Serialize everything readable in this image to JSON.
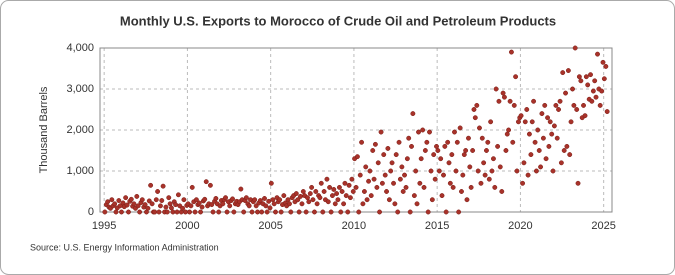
{
  "chart_data": {
    "type": "scatter",
    "title": "Monthly U.S. Exports to Morocco of Crude Oil and Petroleum Products",
    "y_label": "Thousand Barrels",
    "source": "Source: U.S. Energy Information Administration",
    "color": "#a8322a",
    "grid": true,
    "xlim": [
      1994.75,
      2025.5
    ],
    "xticks": [
      1995,
      2000,
      2005,
      2010,
      2015,
      2020,
      2025
    ],
    "ylim": [
      0,
      4000
    ],
    "yticks": [
      0,
      {
        "value": 1000,
        "label": "1,000"
      },
      {
        "value": 2000,
        "label": "2,000"
      },
      {
        "value": 3000,
        "label": "3,000"
      },
      {
        "value": 4000,
        "label": "4,000"
      }
    ],
    "x": [
      1995.04,
      1995.13,
      1995.21,
      1995.29,
      1995.38,
      1995.46,
      1995.54,
      1995.63,
      1995.71,
      1995.79,
      1995.88,
      1995.96,
      1996.04,
      1996.13,
      1996.21,
      1996.29,
      1996.38,
      1996.46,
      1996.54,
      1996.63,
      1996.71,
      1996.79,
      1996.88,
      1996.96,
      1997.04,
      1997.13,
      1997.21,
      1997.29,
      1997.38,
      1997.46,
      1997.54,
      1997.63,
      1997.71,
      1997.79,
      1997.88,
      1997.96,
      1998.04,
      1998.13,
      1998.21,
      1998.29,
      1998.38,
      1998.46,
      1998.54,
      1998.63,
      1998.71,
      1998.79,
      1998.88,
      1998.96,
      1999.04,
      1999.13,
      1999.21,
      1999.29,
      1999.38,
      1999.46,
      1999.54,
      1999.63,
      1999.71,
      1999.79,
      1999.88,
      1999.96,
      2000.04,
      2000.13,
      2000.21,
      2000.29,
      2000.38,
      2000.46,
      2000.54,
      2000.63,
      2000.71,
      2000.79,
      2000.88,
      2000.96,
      2001.04,
      2001.13,
      2001.21,
      2001.29,
      2001.38,
      2001.46,
      2001.54,
      2001.63,
      2001.71,
      2001.79,
      2001.88,
      2001.96,
      2002.04,
      2002.13,
      2002.21,
      2002.29,
      2002.38,
      2002.46,
      2002.54,
      2002.63,
      2002.71,
      2002.79,
      2002.88,
      2002.96,
      2003.04,
      2003.13,
      2003.21,
      2003.29,
      2003.38,
      2003.46,
      2003.54,
      2003.63,
      2003.71,
      2003.79,
      2003.88,
      2003.96,
      2004.04,
      2004.13,
      2004.21,
      2004.29,
      2004.38,
      2004.46,
      2004.54,
      2004.63,
      2004.71,
      2004.79,
      2004.88,
      2004.96,
      2005.04,
      2005.13,
      2005.21,
      2005.29,
      2005.38,
      2005.46,
      2005.54,
      2005.63,
      2005.71,
      2005.79,
      2005.88,
      2005.96,
      2006.04,
      2006.13,
      2006.21,
      2006.29,
      2006.38,
      2006.46,
      2006.54,
      2006.63,
      2006.71,
      2006.79,
      2006.88,
      2006.96,
      2007.04,
      2007.13,
      2007.21,
      2007.29,
      2007.38,
      2007.46,
      2007.54,
      2007.63,
      2007.71,
      2007.79,
      2007.88,
      2007.96,
      2008.04,
      2008.13,
      2008.21,
      2008.29,
      2008.38,
      2008.46,
      2008.54,
      2008.63,
      2008.71,
      2008.79,
      2008.88,
      2008.96,
      2009.04,
      2009.13,
      2009.21,
      2009.29,
      2009.38,
      2009.46,
      2009.54,
      2009.63,
      2009.71,
      2009.79,
      2009.88,
      2009.96,
      2010.04,
      2010.13,
      2010.21,
      2010.29,
      2010.38,
      2010.46,
      2010.54,
      2010.63,
      2010.71,
      2010.79,
      2010.88,
      2010.96,
      2011.04,
      2011.13,
      2011.21,
      2011.29,
      2011.38,
      2011.46,
      2011.54,
      2011.63,
      2011.71,
      2011.79,
      2011.88,
      2011.96,
      2012.04,
      2012.13,
      2012.21,
      2012.29,
      2012.38,
      2012.46,
      2012.54,
      2012.63,
      2012.71,
      2012.79,
      2012.88,
      2012.96,
      2013.04,
      2013.13,
      2013.21,
      2013.29,
      2013.38,
      2013.46,
      2013.54,
      2013.63,
      2013.71,
      2013.79,
      2013.88,
      2013.96,
      2014.04,
      2014.13,
      2014.21,
      2014.29,
      2014.38,
      2014.46,
      2014.54,
      2014.63,
      2014.71,
      2014.79,
      2014.88,
      2014.96,
      2015.04,
      2015.13,
      2015.21,
      2015.29,
      2015.38,
      2015.46,
      2015.54,
      2015.63,
      2015.71,
      2015.79,
      2015.88,
      2015.96,
      2016.04,
      2016.13,
      2016.21,
      2016.29,
      2016.38,
      2016.46,
      2016.54,
      2016.63,
      2016.71,
      2016.79,
      2016.88,
      2016.96,
      2017.04,
      2017.13,
      2017.21,
      2017.29,
      2017.38,
      2017.46,
      2017.54,
      2017.63,
      2017.71,
      2017.79,
      2017.88,
      2017.96,
      2018.04,
      2018.13,
      2018.21,
      2018.29,
      2018.38,
      2018.46,
      2018.54,
      2018.63,
      2018.71,
      2018.79,
      2018.88,
      2018.96,
      2019.04,
      2019.13,
      2019.21,
      2019.29,
      2019.38,
      2019.46,
      2019.54,
      2019.63,
      2019.71,
      2019.79,
      2019.88,
      2019.96,
      2020.04,
      2020.13,
      2020.21,
      2020.29,
      2020.38,
      2020.46,
      2020.54,
      2020.63,
      2020.71,
      2020.79,
      2020.88,
      2020.96,
      2021.04,
      2021.13,
      2021.21,
      2021.29,
      2021.38,
      2021.46,
      2021.54,
      2021.63,
      2021.71,
      2021.79,
      2021.88,
      2021.96,
      2022.04,
      2022.13,
      2022.21,
      2022.29,
      2022.38,
      2022.46,
      2022.54,
      2022.63,
      2022.71,
      2022.79,
      2022.88,
      2022.96,
      2023.04,
      2023.13,
      2023.21,
      2023.29,
      2023.38,
      2023.46,
      2023.54,
      2023.63,
      2023.71,
      2023.79,
      2023.88,
      2023.96,
      2024.04,
      2024.13,
      2024.21,
      2024.29,
      2024.38,
      2024.46,
      2024.54,
      2024.63,
      2024.71,
      2024.79,
      2024.88,
      2024.96,
      2025.04,
      2025.13,
      2025.21
    ],
    "values": [
      0,
      180,
      250,
      120,
      90,
      300,
      150,
      200,
      0,
      100,
      280,
      150,
      0,
      220,
      130,
      350,
      170,
      0,
      260,
      310,
      140,
      200,
      90,
      380,
      150,
      0,
      230,
      300,
      120,
      180,
      0,
      90,
      270,
      650,
      200,
      0,
      0,
      300,
      500,
      0,
      150,
      280,
      630,
      0,
      120,
      0,
      350,
      200,
      100,
      0,
      250,
      180,
      0,
      420,
      150,
      0,
      90,
      300,
      0,
      160,
      200,
      0,
      150,
      600,
      250,
      0,
      300,
      180,
      220,
      0,
      120,
      270,
      310,
      740,
      150,
      200,
      650,
      180,
      0,
      260,
      330,
      200,
      0,
      150,
      280,
      200,
      300,
      350,
      0,
      250,
      150,
      280,
      320,
      0,
      200,
      260,
      180,
      250,
      560,
      300,
      0,
      280,
      350,
      200,
      150,
      300,
      0,
      250,
      300,
      150,
      0,
      220,
      280,
      0,
      200,
      330,
      150,
      0,
      260,
      100,
      700,
      300,
      200,
      0,
      350,
      250,
      300,
      0,
      180,
      400,
      220,
      150,
      300,
      200,
      0,
      350,
      400,
      250,
      450,
      300,
      0,
      380,
      200,
      500,
      400,
      0,
      350,
      250,
      450,
      600,
      300,
      0,
      500,
      200,
      400,
      350,
      700,
      0,
      500,
      300,
      800,
      250,
      600,
      0,
      400,
      550,
      200,
      450,
      300,
      600,
      0,
      500,
      200,
      700,
      400,
      0,
      650,
      350,
      800,
      500,
      1300,
      600,
      1350,
      0,
      900,
      1700,
      200,
      500,
      1100,
      300,
      750,
      1000,
      400,
      1500,
      800,
      1650,
      600,
      1200,
      0,
      1950,
      700,
      1400,
      900,
      500,
      1550,
      300,
      1000,
      1200,
      700,
      200,
      1400,
      0,
      1700,
      800,
      1100,
      500,
      900,
      600,
      1300,
      1800,
      0,
      1600,
      2400,
      400,
      1000,
      200,
      1950,
      700,
      1300,
      2000,
      600,
      1500,
      1700,
      0,
      1950,
      1000,
      300,
      1400,
      800,
      1600,
      1500,
      1000,
      1300,
      400,
      900,
      1600,
      0,
      1700,
      1200,
      700,
      1400,
      600,
      1950,
      1000,
      1700,
      0,
      2050,
      500,
      900,
      1400,
      1500,
      300,
      1800,
      1100,
      600,
      1500,
      2500,
      2300,
      2600,
      1000,
      2050,
      700,
      1800,
      1200,
      900,
      1500,
      1700,
      800,
      2200,
      1000,
      1300,
      600,
      3000,
      1600,
      2700,
      1100,
      500,
      2900,
      2800,
      1500,
      1900,
      2000,
      2700,
      3900,
      1700,
      2600,
      3300,
      1000,
      2200,
      2300,
      2350,
      700,
      1200,
      2200,
      2500,
      900,
      1900,
      1400,
      2200,
      2700,
      1700,
      1000,
      2000,
      1500,
      1100,
      2400,
      1800,
      2600,
      1300,
      2300,
      1600,
      2200,
      1900,
      1000,
      2100,
      2600,
      1800,
      2500,
      2700,
      1200,
      3400,
      1500,
      2900,
      1600,
      3450,
      1400,
      2200,
      3000,
      2600,
      4000,
      2500,
      700,
      3300,
      3200,
      2300,
      2600,
      2350,
      3300,
      3100,
      2750,
      3350,
      2700,
      2950,
      3200,
      2800,
      3850,
      3000,
      2600,
      2950,
      3650,
      3250,
      3550,
      2450
    ]
  }
}
